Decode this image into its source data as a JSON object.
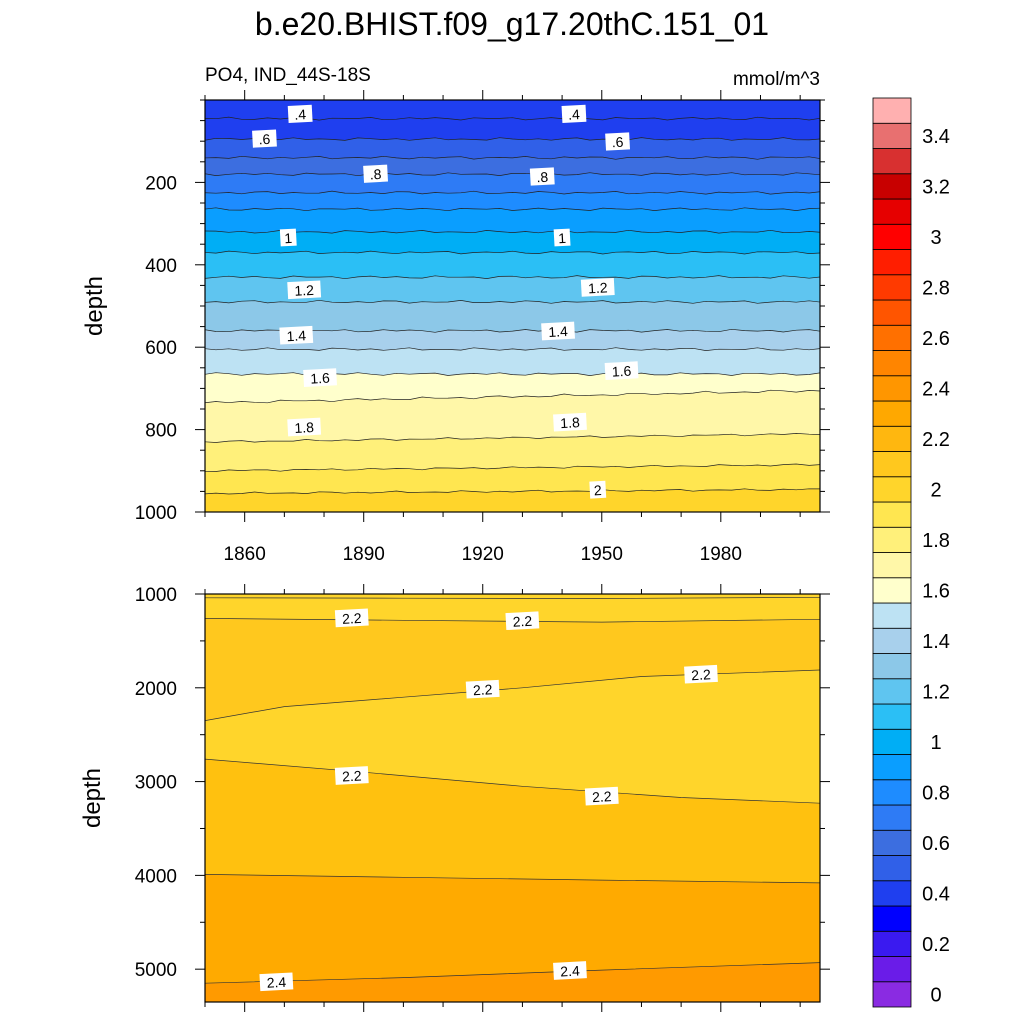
{
  "title": "b.e20.BHIST.f09_g17.20thC.151_01",
  "chart_data": [
    {
      "type": "contour",
      "panel": "upper",
      "title": "",
      "left_label": "PO4, IND_44S-18S",
      "right_label": "mmol/m^3",
      "xlabel": "",
      "ylabel": "depth",
      "xlim": [
        1850,
        2005
      ],
      "ylim": [
        1000,
        0
      ],
      "xticks": [
        1860,
        1890,
        1920,
        1950,
        1980
      ],
      "xtick_labels": [
        "1860",
        "1890",
        "1920",
        "1950",
        "1980"
      ],
      "yticks": [
        200,
        400,
        600,
        800,
        1000
      ],
      "ytick_labels": [
        "200",
        "400",
        "600",
        "800",
        "1000"
      ],
      "contour_interval": 0.1,
      "levels": [
        0.4,
        0.5,
        0.6,
        0.7,
        0.8,
        0.9,
        1.0,
        1.1,
        1.2,
        1.3,
        1.4,
        1.5,
        1.6,
        1.7,
        1.8,
        1.9,
        2.0
      ],
      "contour_depths_m": [
        {
          "level": 0.4,
          "depth": [
            45,
            45
          ]
        },
        {
          "level": 0.5,
          "depth": [
            95,
            95
          ]
        },
        {
          "level": 0.6,
          "depth": [
            140,
            140
          ]
        },
        {
          "level": 0.7,
          "depth": [
            180,
            180
          ]
        },
        {
          "level": 0.8,
          "depth": [
            225,
            225
          ]
        },
        {
          "level": 0.9,
          "depth": [
            265,
            265
          ]
        },
        {
          "level": 1.0,
          "depth": [
            320,
            320
          ]
        },
        {
          "level": 1.1,
          "depth": [
            370,
            370
          ]
        },
        {
          "level": 1.2,
          "depth": [
            430,
            430
          ]
        },
        {
          "level": 1.3,
          "depth": [
            490,
            490
          ]
        },
        {
          "level": 1.4,
          "depth": [
            560,
            560
          ]
        },
        {
          "level": 1.5,
          "depth": [
            605,
            605
          ]
        },
        {
          "level": 1.6,
          "depth": [
            665,
            665
          ]
        },
        {
          "level": 1.7,
          "depth": [
            735,
            705
          ]
        },
        {
          "level": 1.8,
          "depth": [
            830,
            810
          ]
        },
        {
          "level": 1.9,
          "depth": [
            900,
            885
          ]
        },
        {
          "level": 2.0,
          "depth": [
            955,
            945
          ]
        }
      ],
      "contour_labels": [
        {
          "text": ".4",
          "year": 1874,
          "depth": 35
        },
        {
          "text": ".4",
          "year": 1943,
          "depth": 35
        },
        {
          "text": ".6",
          "year": 1865,
          "depth": 95
        },
        {
          "text": ".6",
          "year": 1954,
          "depth": 102
        },
        {
          "text": ".8",
          "year": 1893,
          "depth": 180
        },
        {
          "text": ".8",
          "year": 1935,
          "depth": 187
        },
        {
          "text": "1",
          "year": 1871,
          "depth": 335
        },
        {
          "text": "1",
          "year": 1940,
          "depth": 335
        },
        {
          "text": "1.2",
          "year": 1875,
          "depth": 462
        },
        {
          "text": "1.2",
          "year": 1949,
          "depth": 456
        },
        {
          "text": "1.4",
          "year": 1873,
          "depth": 572
        },
        {
          "text": "1.4",
          "year": 1939,
          "depth": 562
        },
        {
          "text": "1.6",
          "year": 1879,
          "depth": 675
        },
        {
          "text": "1.6",
          "year": 1955,
          "depth": 658
        },
        {
          "text": "1.8",
          "year": 1875,
          "depth": 795
        },
        {
          "text": "1.8",
          "year": 1942,
          "depth": 783
        },
        {
          "text": "2",
          "year": 1949,
          "depth": 947
        }
      ]
    },
    {
      "type": "contour",
      "panel": "lower",
      "title": "",
      "xlabel": "",
      "ylabel": "depth",
      "xlim": [
        1850,
        2005
      ],
      "ylim": [
        5350,
        1000
      ],
      "xticks": [
        1860,
        1890,
        1920,
        1950,
        1980
      ],
      "yticks": [
        1000,
        2000,
        3000,
        4000,
        5000
      ],
      "ytick_labels": [
        "1000",
        "2000",
        "3000",
        "4000",
        "5000"
      ],
      "levels": [
        2.1,
        2.2,
        2.3,
        2.4
      ],
      "contour_labels": [
        {
          "text": "2.2",
          "year": 1887,
          "depth": 1260
        },
        {
          "text": "2.2",
          "year": 1930,
          "depth": 1290
        },
        {
          "text": "2.2",
          "year": 1920,
          "depth": 2020
        },
        {
          "text": "2.2",
          "year": 1975,
          "depth": 1860
        },
        {
          "text": "2.2",
          "year": 1887,
          "depth": 2940
        },
        {
          "text": "2.2",
          "year": 1950,
          "depth": 3160
        },
        {
          "text": "2.4",
          "year": 1868,
          "depth": 5140
        },
        {
          "text": "2.4",
          "year": 1942,
          "depth": 5020
        }
      ]
    }
  ],
  "colorbar": {
    "labels": [
      "0",
      "0.2",
      "0.4",
      "0.6",
      "0.8",
      "1",
      "1.2",
      "1.4",
      "1.6",
      "1.8",
      "2",
      "2.2",
      "2.4",
      "2.6",
      "2.8",
      "3",
      "3.2",
      "3.4"
    ],
    "colors": [
      "#8A2BE2",
      "#6A1CE8",
      "#3A1AF0",
      "#0000FF",
      "#1F3FEF",
      "#3060E8",
      "#3C6EE0",
      "#2E7BF5",
      "#1E8CFF",
      "#0A9EFF",
      "#00AEF5",
      "#2BBFF5",
      "#5FC5F0",
      "#8CC8E8",
      "#A8D0EC",
      "#BDE2F3",
      "#FFFFCC",
      "#FFF7A8",
      "#FFF07A",
      "#FFE650",
      "#FFD52B",
      "#FFC81E",
      "#FFB70F",
      "#FFA800",
      "#FF9600",
      "#FF8500",
      "#FF7000",
      "#FF5500",
      "#FF3A00",
      "#FF1E00",
      "#FF0000",
      "#E60000",
      "#C80000",
      "#D83030",
      "#E87070",
      "#FFB0B0"
    ]
  }
}
